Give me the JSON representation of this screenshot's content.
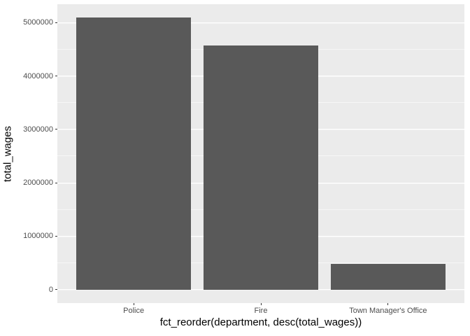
{
  "chart_data": {
    "type": "bar",
    "title": "",
    "categories": [
      "Police",
      "Fire",
      "Town Manager's Office"
    ],
    "values": [
      5090000,
      4570000,
      480000
    ],
    "xlabel": "fct_reorder(department, desc(total_wages))",
    "ylabel": "total_wages",
    "y_ticks": [
      0,
      1000000,
      2000000,
      3000000,
      4000000,
      5000000
    ],
    "y_minor_ticks": [
      500000,
      1500000,
      2500000,
      3500000,
      4500000
    ],
    "ylim": [
      -255000,
      5345000
    ],
    "grid": "on",
    "legend": "none",
    "colors": {
      "bar_fill": "#595959",
      "panel_background": "#EBEBEB",
      "grid_major": "#FFFFFF",
      "axis_text": "#4D4D4D",
      "axis_title": "#000000",
      "tick_mark": "#333333",
      "figure_background": "#FFFFFF"
    }
  }
}
